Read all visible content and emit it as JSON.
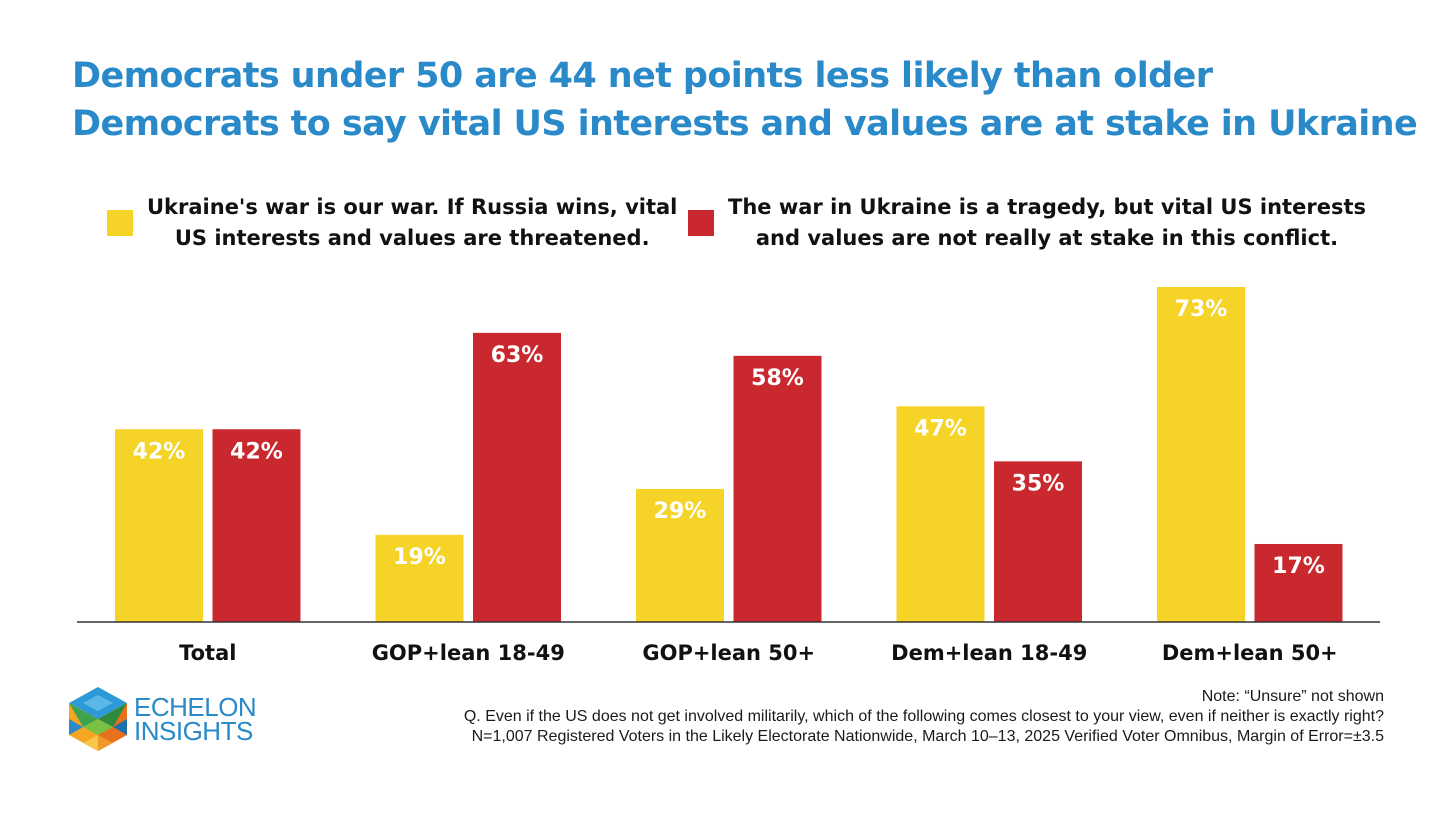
{
  "title_lines": [
    "Democrats under 50 are 44 net points less likely than older",
    "Democrats to say vital US interests and values are at stake in Ukraine"
  ],
  "legend": [
    {
      "lines": [
        "Ukraine's war is our war. If Russia wins, vital",
        "US interests and values are threatened."
      ],
      "color": "#f5d327"
    },
    {
      "lines": [
        "The war in Ukraine is a tragedy, but vital US interests",
        "and values are not really at stake in this conflict."
      ],
      "color": "#c8282e"
    }
  ],
  "chart_data": {
    "type": "bar",
    "categories": [
      "Total",
      "GOP+lean 18-49",
      "GOP+lean 50+",
      "Dem+lean 18-49",
      "Dem+lean 50+"
    ],
    "series": [
      {
        "name": "Ukraine's war is our war. If Russia wins, vital US interests and values are threatened.",
        "color": "#f5d327",
        "values": [
          42,
          19,
          29,
          47,
          73
        ]
      },
      {
        "name": "The war in Ukraine is a tragedy, but vital US interests and values are not really at stake in this conflict.",
        "color": "#c8282e",
        "values": [
          42,
          63,
          58,
          35,
          17
        ]
      }
    ],
    "value_suffix": "%",
    "ylim": [
      0,
      73
    ],
    "grid": false,
    "legend_position": "top"
  },
  "footnote": {
    "note": "Note: “Unsure” not shown",
    "question": "Q. Even if the US does not get involved militarily, which of the following comes closest to your view, even if neither is exactly right?",
    "sample": "N=1,007 Registered Voters in the Likely Electorate Nationwide, March 10–13, 2025 Verified Voter Omnibus, Margin of Error=±3.5"
  },
  "logo": {
    "line1": "ECHELON",
    "line2": "INSIGHTS"
  }
}
